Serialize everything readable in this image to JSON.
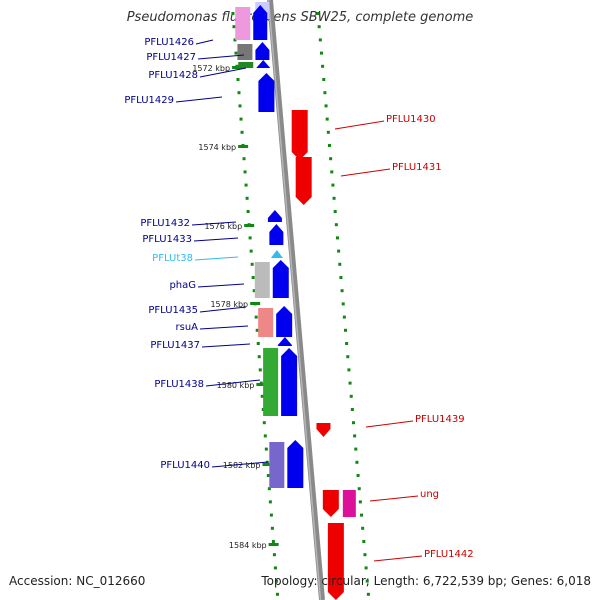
{
  "title": "Pseudomonas fluorescens SBW25, complete genome",
  "footer": {
    "accession": "Accession: NC_012660",
    "summary": "Topology: circular; Length: 6,722,539 bp; Genes: 6,018"
  },
  "colors": {
    "backbone": "#8a8a8a",
    "forward_label": "#00008b",
    "reverse_label": "#cc0000",
    "trna_label": "#33bbee",
    "scale_ticks": "#118811"
  },
  "scale_labels": [
    "1572 kbp",
    "1574 kbp",
    "1576 kbp",
    "1578 kbp",
    "1580 kbp",
    "1582 kbp",
    "1584 kbp"
  ],
  "features": [
    {
      "name": "PFLU1426",
      "strand": "+"
    },
    {
      "name": "PFLU1427",
      "strand": "+"
    },
    {
      "name": "PFLU1428",
      "strand": "+"
    },
    {
      "name": "PFLU1429",
      "strand": "+"
    },
    {
      "name": "PFLU1430",
      "strand": "-"
    },
    {
      "name": "PFLU1431",
      "strand": "-"
    },
    {
      "name": "PFLU1432",
      "strand": "+"
    },
    {
      "name": "PFLU1433",
      "strand": "+"
    },
    {
      "name": "PFLUt38",
      "strand": "+",
      "type": "tRNA"
    },
    {
      "name": "phaG",
      "strand": "+"
    },
    {
      "name": "PFLU1435",
      "strand": "+"
    },
    {
      "name": "rsuA",
      "strand": "+"
    },
    {
      "name": "PFLU1437",
      "strand": "+"
    },
    {
      "name": "PFLU1438",
      "strand": "+"
    },
    {
      "name": "PFLU1439",
      "strand": "-"
    },
    {
      "name": "PFLU1440",
      "strand": "+"
    },
    {
      "name": "ung",
      "strand": "-"
    },
    {
      "name": "PFLU1442",
      "strand": "-"
    }
  ]
}
